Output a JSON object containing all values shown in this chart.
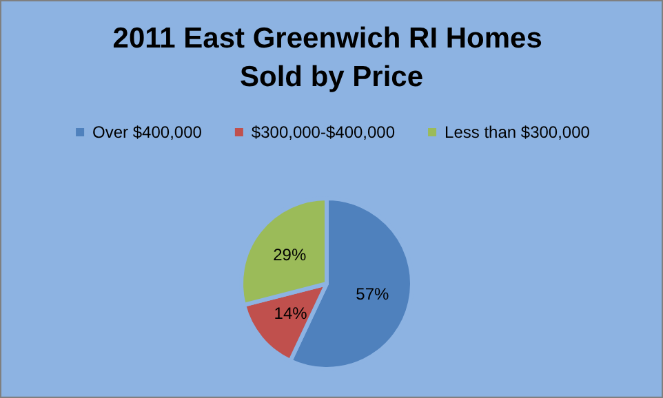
{
  "chart_data": {
    "type": "pie",
    "title": "2011 East Greenwich RI Homes Sold by Price",
    "categories": [
      "Over $400,000",
      "$300,000-$400,000",
      "Less than $300,000"
    ],
    "values": [
      57,
      14,
      29
    ],
    "colors": [
      "#4f81bd",
      "#c0504d",
      "#9bbb59"
    ],
    "value_labels": [
      "57%",
      "14%",
      "29%"
    ],
    "legend": "top"
  }
}
